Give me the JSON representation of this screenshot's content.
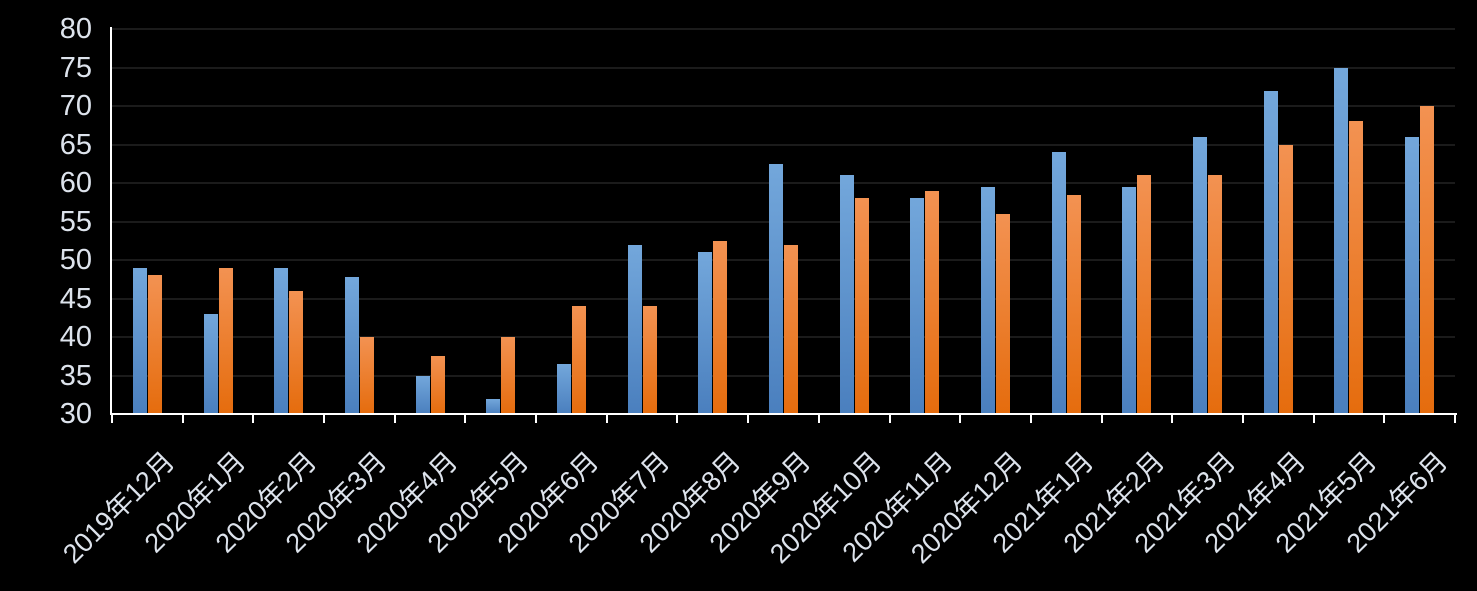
{
  "chart_data": {
    "type": "bar",
    "title": "",
    "legend": "none",
    "grid": true,
    "background_color": "#000000",
    "gridline_color": "#1b1b1b",
    "axis_color": "#ffffff",
    "tick_label_color": "#dde3ec",
    "ylim": [
      30,
      80
    ],
    "ytick_step": 5,
    "yticks": [
      30,
      35,
      40,
      45,
      50,
      55,
      60,
      65,
      70,
      75,
      80
    ],
    "categories": [
      "2019年12月",
      "2020年1月",
      "2020年2月",
      "2020年3月",
      "2020年4月",
      "2020年5月",
      "2020年6月",
      "2020年7月",
      "2020年8月",
      "2020年9月",
      "2020年10月",
      "2020年11月",
      "2020年12月",
      "2021年1月",
      "2021年2月",
      "2021年3月",
      "2021年4月",
      "2021年5月",
      "2021年6月"
    ],
    "series": [
      {
        "name": "blue-series",
        "color": "#5b9bd5",
        "gradient_top": "#73a7db",
        "gradient_bottom": "#4a7fbe",
        "values": [
          49,
          43,
          49,
          47.8,
          35,
          32,
          36.5,
          52,
          51,
          62.5,
          61,
          58,
          59.5,
          64,
          59.5,
          66,
          72,
          75,
          66
        ]
      },
      {
        "name": "orange-series",
        "color": "#ed7d31",
        "gradient_top": "#f39252",
        "gradient_bottom": "#e56c0d",
        "values": [
          48,
          49,
          46,
          40,
          37.5,
          40,
          44,
          44,
          52.5,
          52,
          58,
          59,
          56,
          58.5,
          61,
          61,
          65,
          68,
          70
        ]
      }
    ]
  }
}
